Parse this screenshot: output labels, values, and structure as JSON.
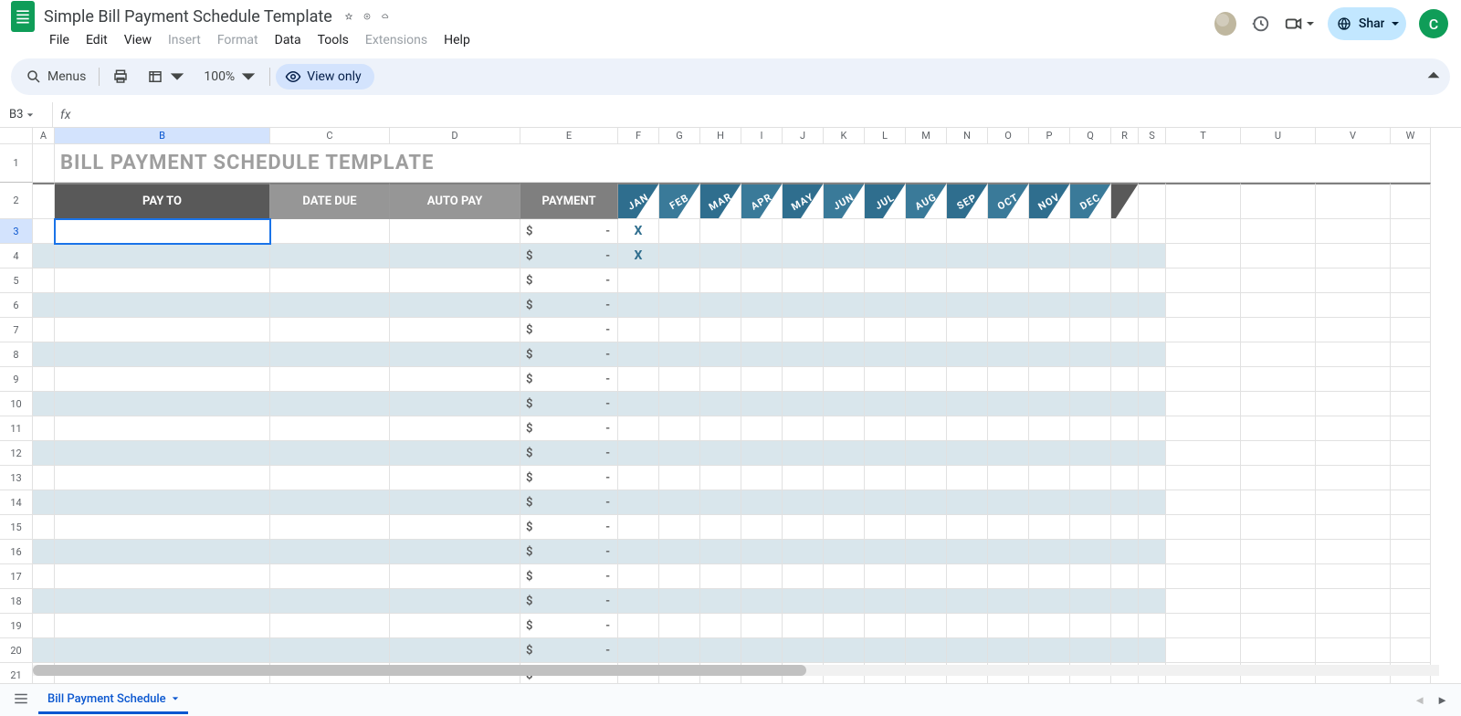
{
  "doc": {
    "title": "Simple Bill Payment Schedule Template"
  },
  "menus": [
    "File",
    "Edit",
    "View",
    "Insert",
    "Format",
    "Data",
    "Tools",
    "Extensions",
    "Help"
  ],
  "disabled_menus": [
    "Insert",
    "Format",
    "Extensions"
  ],
  "toolbar": {
    "menus_label": "Menus",
    "zoom": "100%",
    "viewonly": "View only"
  },
  "share_label": "Share",
  "avatar_letter": "C",
  "namebox": "B3",
  "formula": "",
  "sheet_tab": "Bill Payment Schedule",
  "columns": {
    "letters": [
      "A",
      "B",
      "C",
      "D",
      "E",
      "F",
      "G",
      "H",
      "I",
      "J",
      "K",
      "L",
      "M",
      "N",
      "O",
      "P",
      "Q",
      "R",
      "S",
      "T",
      "U",
      "V",
      "W"
    ],
    "widths": [
      24,
      236,
      131,
      143,
      107,
      45,
      45,
      45,
      45,
      45,
      45,
      45,
      45,
      45,
      45,
      45,
      45,
      30,
      30,
      82,
      82,
      82,
      44
    ]
  },
  "content": {
    "title": "BILL PAYMENT SCHEDULE TEMPLATE",
    "headers": {
      "pay_to": {
        "text": "PAY TO",
        "bg": "#595959"
      },
      "date_due": {
        "text": "DATE DUE",
        "bg": "#969696"
      },
      "auto_pay": {
        "text": "AUTO PAY",
        "bg": "#969696"
      },
      "payment": {
        "text": "PAYMENT",
        "bg": "#7f7f7f"
      }
    },
    "months": [
      "JAN",
      "FEB",
      "MAR",
      "APR",
      "MAY",
      "JUN",
      "JUL",
      "AUG",
      "SEP",
      "OCT",
      "NOV",
      "DEC"
    ],
    "month_colors": [
      "#2f6e8e",
      "#3a7a99",
      "#2f6e8e",
      "#3a7a99",
      "#2f6e8e",
      "#3a7a99",
      "#2f6e8e",
      "#3a7a99",
      "#2f6e8e",
      "#3a7a99",
      "#2f6e8e",
      "#3a7a99"
    ],
    "tail_color": "#595959",
    "row_count": 19,
    "alt_color": "#d9e6ec",
    "x_rows": [
      0,
      1
    ],
    "x_mark": "X",
    "pay_prefix": "$",
    "pay_value": "-"
  },
  "selected": {
    "cell": "B3",
    "row": 3,
    "col": "B"
  }
}
